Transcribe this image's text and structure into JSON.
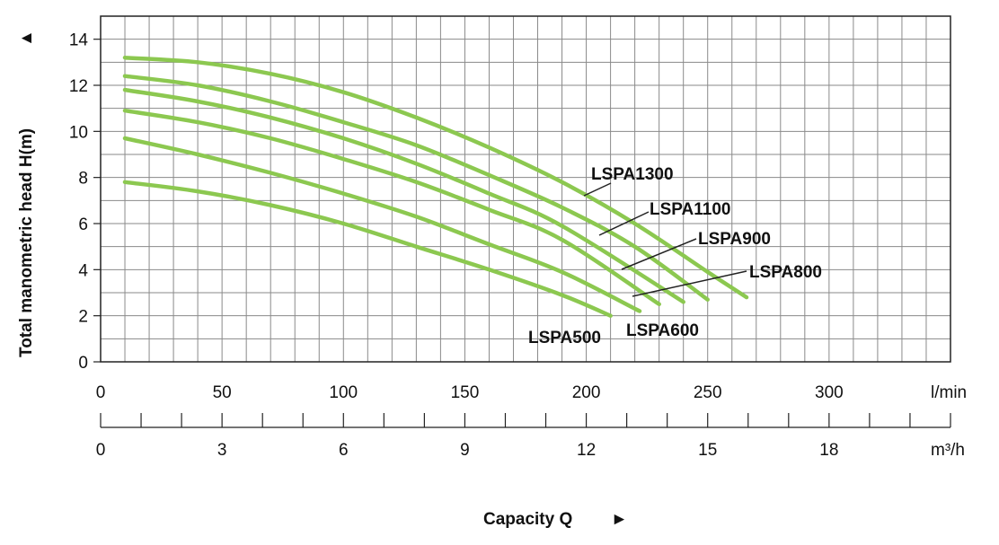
{
  "chart_data": {
    "type": "line",
    "x_unit_primary": "l/min",
    "x_unit_secondary": "m³/h",
    "xlim": [
      0,
      350
    ],
    "ylim": [
      0,
      15
    ],
    "grid": true,
    "x_ticks_primary": [
      0,
      50,
      100,
      150,
      200,
      250,
      300
    ],
    "x_ticks_secondary": [
      0,
      3,
      6,
      9,
      12,
      15,
      18
    ],
    "y_ticks": [
      0,
      2,
      4,
      6,
      8,
      10,
      12,
      14
    ],
    "ylabel": "Total manometric head H(m)",
    "ylabel_arrow": "▲",
    "xlabel": "Capacity Q",
    "xlabel_arrow": "►",
    "series": [
      {
        "name": "LSPA500",
        "x": [
          10,
          40,
          70,
          100,
          130,
          160,
          190,
          210
        ],
        "y": [
          7.8,
          7.4,
          6.8,
          6.0,
          5.0,
          4.0,
          2.9,
          2.0
        ]
      },
      {
        "name": "LSPA600",
        "x": [
          10,
          40,
          70,
          100,
          130,
          160,
          190,
          222
        ],
        "y": [
          9.7,
          9.0,
          8.2,
          7.3,
          6.3,
          5.1,
          3.9,
          2.2
        ]
      },
      {
        "name": "LSPA800",
        "x": [
          10,
          40,
          70,
          100,
          130,
          160,
          190,
          230
        ],
        "y": [
          10.9,
          10.4,
          9.7,
          8.8,
          7.8,
          6.6,
          5.3,
          2.5
        ]
      },
      {
        "name": "LSPA900",
        "x": [
          10,
          40,
          70,
          100,
          130,
          160,
          190,
          240
        ],
        "y": [
          11.8,
          11.3,
          10.6,
          9.7,
          8.6,
          7.3,
          5.9,
          2.6
        ]
      },
      {
        "name": "LSPA1100",
        "x": [
          10,
          40,
          70,
          100,
          130,
          160,
          190,
          220,
          250
        ],
        "y": [
          12.4,
          12.0,
          11.3,
          10.4,
          9.4,
          8.1,
          6.7,
          5.0,
          2.7
        ]
      },
      {
        "name": "LSPA1300",
        "x": [
          10,
          40,
          70,
          100,
          130,
          160,
          190,
          220,
          250,
          266
        ],
        "y": [
          13.2,
          13.0,
          12.5,
          11.7,
          10.6,
          9.3,
          7.8,
          6.0,
          3.9,
          2.8
        ]
      }
    ],
    "line_color": "#8cc850"
  }
}
